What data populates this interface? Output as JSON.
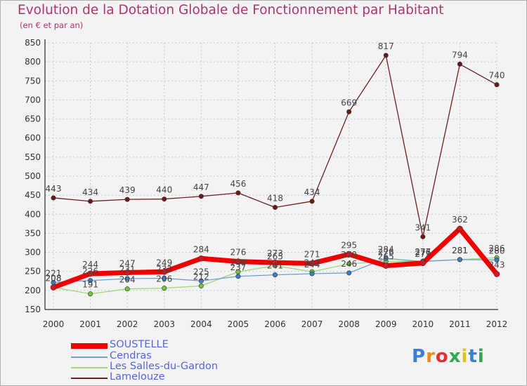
{
  "colors": {
    "title": "#b0346e",
    "legend_text": "#5566dd",
    "grid": "#c8c8c8",
    "axis": "#000000"
  },
  "chart_data": {
    "type": "line",
    "title": "Evolution de la Dotation Globale de Fonctionnement par Habitant",
    "subtitle": "(en € et par an)",
    "x": [
      "2000",
      "2001",
      "2002",
      "2003",
      "2004",
      "2005",
      "2006",
      "2007",
      "2008",
      "2009",
      "2010",
      "2011",
      "2012"
    ],
    "ylim": [
      150,
      850
    ],
    "yticks": [
      "150",
      "200",
      "250",
      "300",
      "350",
      "400",
      "450",
      "500",
      "550",
      "600",
      "650",
      "700",
      "750",
      "800",
      "850"
    ],
    "grid": true,
    "legend_position": "bottom-left",
    "series": [
      {
        "name": "SOUSTELLE",
        "color": "#ee0000",
        "marker": "#c41e2a",
        "width": 7,
        "values": [
          208,
          244,
          247,
          249,
          284,
          276,
          273,
          271,
          295,
          265,
          272,
          362,
          243
        ]
      },
      {
        "name": "Cendras",
        "color": "#6f9fcf",
        "marker": "#3b7fc4",
        "width": 1.3,
        "values": [
          221,
          226,
          231,
          232,
          225,
          237,
          241,
          244,
          246,
          284,
          276,
          281,
          280
        ]
      },
      {
        "name": "Les Salles-du-Gardon",
        "color": "#9fd67a",
        "marker": "#78c43c",
        "width": 1.3,
        "values": [
          208,
          191,
          204,
          206,
          212,
          249,
          265,
          249,
          270,
          276,
          277,
          281,
          286
        ]
      },
      {
        "name": "Lamelouze",
        "color": "#6b2020",
        "marker": "#6b1a1a",
        "width": 1.3,
        "values": [
          443,
          434,
          439,
          440,
          447,
          456,
          418,
          434,
          669,
          817,
          341,
          794,
          740
        ]
      }
    ],
    "data_labels": [
      [
        "208",
        "244",
        "247",
        "249",
        "284",
        "276",
        "273",
        "271",
        "295",
        "265",
        "272",
        "362",
        "243"
      ],
      [
        "221",
        "226",
        "231",
        "232",
        "225",
        "237",
        "241",
        "244",
        "246",
        "284",
        "276",
        "281",
        "280"
      ],
      [
        "208",
        "191",
        "204",
        "206",
        "212",
        "249",
        "265",
        "249",
        "270",
        "276",
        "277",
        "281",
        "286"
      ],
      [
        "443",
        "434",
        "439",
        "440",
        "447",
        "456",
        "418",
        "434",
        "669",
        "817",
        "341",
        "794",
        "740"
      ]
    ]
  },
  "logo": {
    "letters": [
      "P",
      "r",
      "o",
      "x",
      "i",
      "t",
      "i"
    ],
    "colors": [
      "#3a7fd0",
      "#f08a20",
      "#e03030",
      "#2fa84f",
      "#e0c020",
      "#3a7fd0",
      "#2fa84f"
    ]
  }
}
